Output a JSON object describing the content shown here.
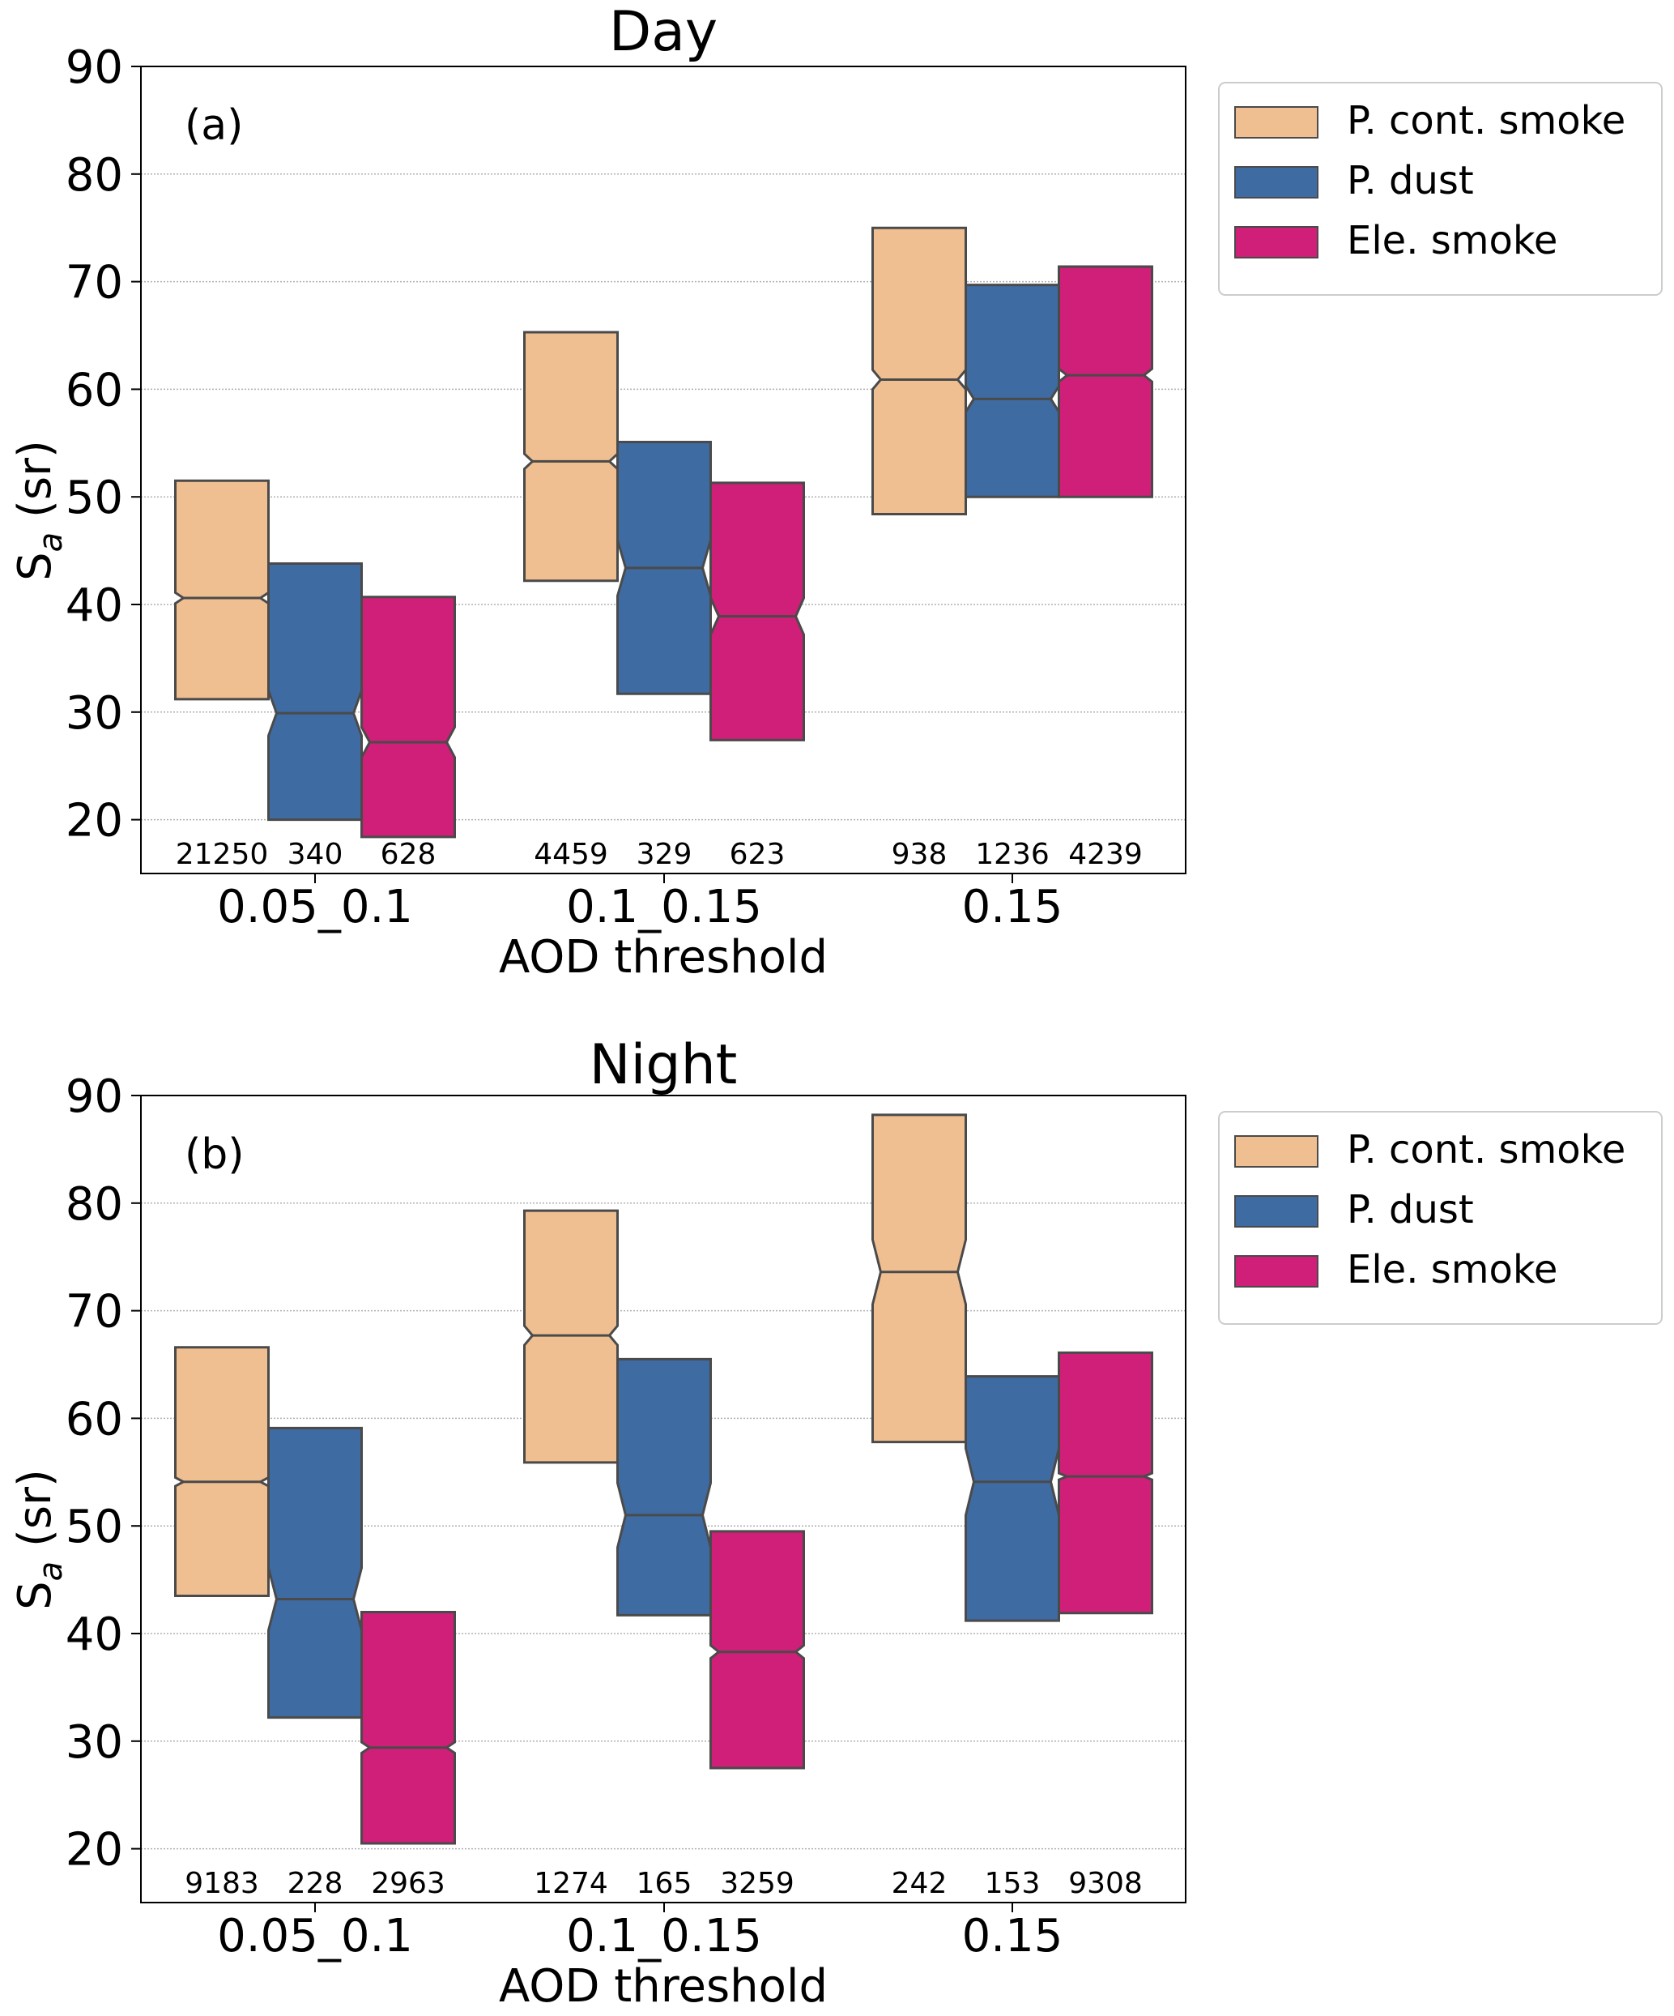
{
  "chart_data": [
    {
      "type": "notched-box",
      "title": "Day",
      "panel_label": "(a)",
      "xlabel": "AOD threshold",
      "ylabel": "S",
      "ylabel_sub": "a",
      "ylabel_unit": " (sr)",
      "ylim": [
        15,
        90
      ],
      "yticks": [
        20,
        30,
        40,
        50,
        60,
        70,
        80,
        90
      ],
      "grid": true,
      "legend_position": "outside-top-right",
      "categories": [
        "0.05_0.1",
        "0.1_0.15",
        "0.15"
      ],
      "series": [
        {
          "name": "P. cont. smoke",
          "color": "#F0BF91",
          "q1": [
            31.2,
            42.2,
            48.4
          ],
          "median": [
            40.6,
            53.3,
            60.9
          ],
          "q3": [
            51.5,
            65.3,
            75.0
          ],
          "notch_low": [
            40.1,
            52.6,
            60.0
          ],
          "notch_high": [
            41.1,
            54.0,
            61.8
          ],
          "counts": [
            "21250",
            "4459",
            "938"
          ]
        },
        {
          "name": "P. dust",
          "color": "#3F6BA3",
          "q1": [
            20.0,
            31.7,
            50.0
          ],
          "median": [
            29.9,
            43.4,
            59.1
          ],
          "q3": [
            43.8,
            55.1,
            69.7
          ],
          "notch_low": [
            27.8,
            40.8,
            57.9
          ],
          "notch_high": [
            32.0,
            46.0,
            60.3
          ],
          "counts": [
            "340",
            "329",
            "1236"
          ]
        },
        {
          "name": "Ele. smoke",
          "color": "#D01F78",
          "q1": [
            18.4,
            27.4,
            50.0
          ],
          "median": [
            27.2,
            38.9,
            61.3
          ],
          "q3": [
            40.7,
            51.3,
            71.4
          ],
          "notch_low": [
            25.8,
            37.2,
            60.7
          ],
          "notch_high": [
            28.6,
            40.6,
            61.9
          ],
          "counts": [
            "628",
            "623",
            "4239"
          ]
        }
      ]
    },
    {
      "type": "notched-box",
      "title": "Night",
      "panel_label": "(b)",
      "xlabel": "AOD threshold",
      "ylabel": "S",
      "ylabel_sub": "a",
      "ylabel_unit": " (sr)",
      "ylim": [
        15,
        90
      ],
      "yticks": [
        20,
        30,
        40,
        50,
        60,
        70,
        80,
        90
      ],
      "grid": true,
      "legend_position": "outside-top-right",
      "categories": [
        "0.05_0.1",
        "0.1_0.15",
        "0.15"
      ],
      "series": [
        {
          "name": "P. cont. smoke",
          "color": "#F0BF91",
          "q1": [
            43.5,
            55.9,
            57.8
          ],
          "median": [
            54.1,
            67.7,
            73.6
          ],
          "q3": [
            66.6,
            79.3,
            88.2
          ],
          "notch_low": [
            53.7,
            66.8,
            70.6
          ],
          "notch_high": [
            54.5,
            68.6,
            76.6
          ],
          "counts": [
            "9183",
            "1274",
            "242"
          ]
        },
        {
          "name": "P. dust",
          "color": "#3F6BA3",
          "q1": [
            32.2,
            41.7,
            41.2
          ],
          "median": [
            43.2,
            51.0,
            54.1
          ],
          "q3": [
            59.1,
            65.5,
            63.9
          ],
          "notch_low": [
            40.3,
            48.0,
            51.0
          ],
          "notch_high": [
            46.1,
            54.0,
            57.2
          ],
          "counts": [
            "228",
            "165",
            "153"
          ]
        },
        {
          "name": "Ele. smoke",
          "color": "#D01F78",
          "q1": [
            20.5,
            27.5,
            41.9
          ],
          "median": [
            29.4,
            38.3,
            54.6
          ],
          "q3": [
            42.0,
            49.5,
            66.1
          ],
          "notch_low": [
            28.9,
            37.7,
            54.3
          ],
          "notch_high": [
            29.9,
            38.9,
            54.9
          ],
          "counts": [
            "2963",
            "3259",
            "9308"
          ]
        }
      ]
    }
  ]
}
